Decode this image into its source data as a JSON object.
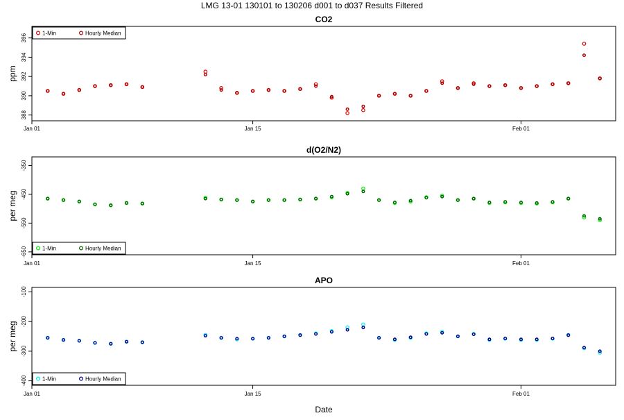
{
  "header": {
    "title": "LMG   13-01    130101 to 130206    d001 to d037   Results Filtered"
  },
  "colors": {
    "co2_point": "#dd0000",
    "co2_median": "#b00000",
    "o2n2_point": "#00ee00",
    "o2n2_median": "#006400",
    "apo_point": "#00eeee",
    "apo_median": "#00008b",
    "axis": "#000000",
    "background": "#ffffff"
  },
  "chart_data": [
    {
      "type": "scatter",
      "title": "CO2",
      "xlabel": "",
      "ylabel": "ppm",
      "x_ticks": [
        "Jan 01",
        "Jan 15",
        "Feb 01"
      ],
      "xlim": [
        "2013-01-01",
        "2013-02-07"
      ],
      "ylim": [
        387.4,
        397.2
      ],
      "y_ticks": [
        388,
        390,
        392,
        394,
        396
      ],
      "legend": {
        "position": "top-left",
        "entries": [
          "1-Min",
          "Hourly Median"
        ]
      },
      "grid": false,
      "series": [
        {
          "name": "1-Min",
          "color_key": "co2_point",
          "x": [
            "2013-01-02",
            "2013-01-03",
            "2013-01-04",
            "2013-01-05",
            "2013-01-06",
            "2013-01-07",
            "2013-01-08",
            "2013-01-12",
            "2013-01-13",
            "2013-01-14",
            "2013-01-15",
            "2013-01-16",
            "2013-01-17",
            "2013-01-18",
            "2013-01-19",
            "2013-01-20",
            "2013-01-21",
            "2013-01-22",
            "2013-01-23",
            "2013-01-24",
            "2013-01-25",
            "2013-01-26",
            "2013-01-27",
            "2013-01-28",
            "2013-01-29",
            "2013-01-30",
            "2013-01-31",
            "2013-02-01",
            "2013-02-02",
            "2013-02-03",
            "2013-02-04",
            "2013-02-05",
            "2013-02-06"
          ],
          "y": [
            390.5,
            390.2,
            390.6,
            391.0,
            391.1,
            391.2,
            390.9,
            392.5,
            390.8,
            390.3,
            390.5,
            390.6,
            390.5,
            390.7,
            391.2,
            389.8,
            388.2,
            388.5,
            390.0,
            390.2,
            390.0,
            390.5,
            391.5,
            390.8,
            391.3,
            391.0,
            391.1,
            390.8,
            391.0,
            391.2,
            391.3,
            395.4,
            391.8
          ]
        },
        {
          "name": "Hourly Median",
          "color_key": "co2_median",
          "x": [
            "2013-01-02",
            "2013-01-03",
            "2013-01-04",
            "2013-01-05",
            "2013-01-06",
            "2013-01-07",
            "2013-01-08",
            "2013-01-12",
            "2013-01-13",
            "2013-01-14",
            "2013-01-15",
            "2013-01-16",
            "2013-01-17",
            "2013-01-18",
            "2013-01-19",
            "2013-01-20",
            "2013-01-21",
            "2013-01-22",
            "2013-01-23",
            "2013-01-24",
            "2013-01-25",
            "2013-01-26",
            "2013-01-27",
            "2013-01-28",
            "2013-01-29",
            "2013-01-30",
            "2013-01-31",
            "2013-02-01",
            "2013-02-02",
            "2013-02-03",
            "2013-02-04",
            "2013-02-05",
            "2013-02-06"
          ],
          "y": [
            390.5,
            390.2,
            390.6,
            391.0,
            391.1,
            391.2,
            390.9,
            392.2,
            390.6,
            390.3,
            390.5,
            390.6,
            390.5,
            390.7,
            391.0,
            389.9,
            388.6,
            388.9,
            390.0,
            390.2,
            390.0,
            390.5,
            391.3,
            390.8,
            391.2,
            391.0,
            391.1,
            390.8,
            391.0,
            391.2,
            391.3,
            394.2,
            391.8
          ]
        }
      ]
    },
    {
      "type": "scatter",
      "title": "d(O2/N2)",
      "xlabel": "",
      "ylabel": "per meg",
      "x_ticks": [
        "Jan 01",
        "Jan 15",
        "Feb 01"
      ],
      "xlim": [
        "2013-01-01",
        "2013-02-07"
      ],
      "ylim": [
        -660,
        -320
      ],
      "y_ticks": [
        -350,
        -450,
        -550,
        -650
      ],
      "legend": {
        "position": "bottom-left",
        "entries": [
          "1-Min",
          "Hourly Median"
        ]
      },
      "grid": false,
      "series": [
        {
          "name": "1-Min",
          "color_key": "o2n2_point",
          "x": [
            "2013-01-02",
            "2013-01-03",
            "2013-01-04",
            "2013-01-05",
            "2013-01-06",
            "2013-01-07",
            "2013-01-08",
            "2013-01-12",
            "2013-01-13",
            "2013-01-14",
            "2013-01-15",
            "2013-01-16",
            "2013-01-17",
            "2013-01-18",
            "2013-01-19",
            "2013-01-20",
            "2013-01-21",
            "2013-01-22",
            "2013-01-23",
            "2013-01-24",
            "2013-01-25",
            "2013-01-26",
            "2013-01-27",
            "2013-01-28",
            "2013-01-29",
            "2013-01-30",
            "2013-01-31",
            "2013-02-01",
            "2013-02-02",
            "2013-02-03",
            "2013-02-04",
            "2013-02-05",
            "2013-02-06"
          ],
          "y": [
            -465,
            -470,
            -475,
            -485,
            -488,
            -480,
            -482,
            -462,
            -468,
            -470,
            -475,
            -470,
            -470,
            -468,
            -465,
            -460,
            -445,
            -430,
            -470,
            -480,
            -475,
            -460,
            -455,
            -470,
            -465,
            -480,
            -478,
            -480,
            -482,
            -478,
            -465,
            -530,
            -540
          ]
        },
        {
          "name": "Hourly Median",
          "color_key": "o2n2_median",
          "x": [
            "2013-01-02",
            "2013-01-03",
            "2013-01-04",
            "2013-01-05",
            "2013-01-06",
            "2013-01-07",
            "2013-01-08",
            "2013-01-12",
            "2013-01-13",
            "2013-01-14",
            "2013-01-15",
            "2013-01-16",
            "2013-01-17",
            "2013-01-18",
            "2013-01-19",
            "2013-01-20",
            "2013-01-21",
            "2013-01-22",
            "2013-01-23",
            "2013-01-24",
            "2013-01-25",
            "2013-01-26",
            "2013-01-27",
            "2013-01-28",
            "2013-01-29",
            "2013-01-30",
            "2013-01-31",
            "2013-02-01",
            "2013-02-02",
            "2013-02-03",
            "2013-02-04",
            "2013-02-05",
            "2013-02-06"
          ],
          "y": [
            -465,
            -470,
            -475,
            -485,
            -488,
            -480,
            -482,
            -465,
            -468,
            -470,
            -475,
            -470,
            -470,
            -468,
            -465,
            -458,
            -448,
            -440,
            -470,
            -478,
            -472,
            -462,
            -458,
            -470,
            -465,
            -478,
            -476,
            -478,
            -480,
            -476,
            -465,
            -525,
            -535
          ]
        }
      ]
    },
    {
      "type": "scatter",
      "title": "APO",
      "xlabel": "Date",
      "ylabel": "per meg",
      "x_ticks": [
        "Jan 01",
        "Jan 15",
        "Feb 01"
      ],
      "xlim": [
        "2013-01-01",
        "2013-02-07"
      ],
      "ylim": [
        -415,
        -85
      ],
      "y_ticks": [
        -100,
        -200,
        -300,
        -400
      ],
      "legend": {
        "position": "bottom-left",
        "entries": [
          "1-Min",
          "Hourly Median"
        ]
      },
      "grid": false,
      "series": [
        {
          "name": "1-Min",
          "color_key": "apo_point",
          "x": [
            "2013-01-02",
            "2013-01-03",
            "2013-01-04",
            "2013-01-05",
            "2013-01-06",
            "2013-01-07",
            "2013-01-08",
            "2013-01-12",
            "2013-01-13",
            "2013-01-14",
            "2013-01-15",
            "2013-01-16",
            "2013-01-17",
            "2013-01-18",
            "2013-01-19",
            "2013-01-20",
            "2013-01-21",
            "2013-01-22",
            "2013-01-23",
            "2013-01-24",
            "2013-01-25",
            "2013-01-26",
            "2013-01-27",
            "2013-01-28",
            "2013-01-29",
            "2013-01-30",
            "2013-01-31",
            "2013-02-01",
            "2013-02-02",
            "2013-02-03",
            "2013-02-04",
            "2013-02-05",
            "2013-02-06"
          ],
          "y": [
            -255,
            -262,
            -265,
            -272,
            -275,
            -268,
            -270,
            -245,
            -255,
            -260,
            -258,
            -255,
            -250,
            -245,
            -240,
            -232,
            -220,
            -210,
            -255,
            -262,
            -255,
            -240,
            -235,
            -250,
            -242,
            -262,
            -258,
            -262,
            -262,
            -258,
            -245,
            -290,
            -305
          ]
        },
        {
          "name": "Hourly Median",
          "color_key": "apo_median",
          "x": [
            "2013-01-02",
            "2013-01-03",
            "2013-01-04",
            "2013-01-05",
            "2013-01-06",
            "2013-01-07",
            "2013-01-08",
            "2013-01-12",
            "2013-01-13",
            "2013-01-14",
            "2013-01-15",
            "2013-01-16",
            "2013-01-17",
            "2013-01-18",
            "2013-01-19",
            "2013-01-20",
            "2013-01-21",
            "2013-01-22",
            "2013-01-23",
            "2013-01-24",
            "2013-01-25",
            "2013-01-26",
            "2013-01-27",
            "2013-01-28",
            "2013-01-29",
            "2013-01-30",
            "2013-01-31",
            "2013-02-01",
            "2013-02-02",
            "2013-02-03",
            "2013-02-04",
            "2013-02-05",
            "2013-02-06"
          ],
          "y": [
            -255,
            -262,
            -265,
            -272,
            -275,
            -268,
            -270,
            -248,
            -255,
            -258,
            -258,
            -255,
            -250,
            -246,
            -242,
            -235,
            -228,
            -220,
            -255,
            -260,
            -253,
            -242,
            -238,
            -250,
            -243,
            -260,
            -257,
            -260,
            -260,
            -257,
            -246,
            -288,
            -300
          ]
        }
      ]
    }
  ]
}
